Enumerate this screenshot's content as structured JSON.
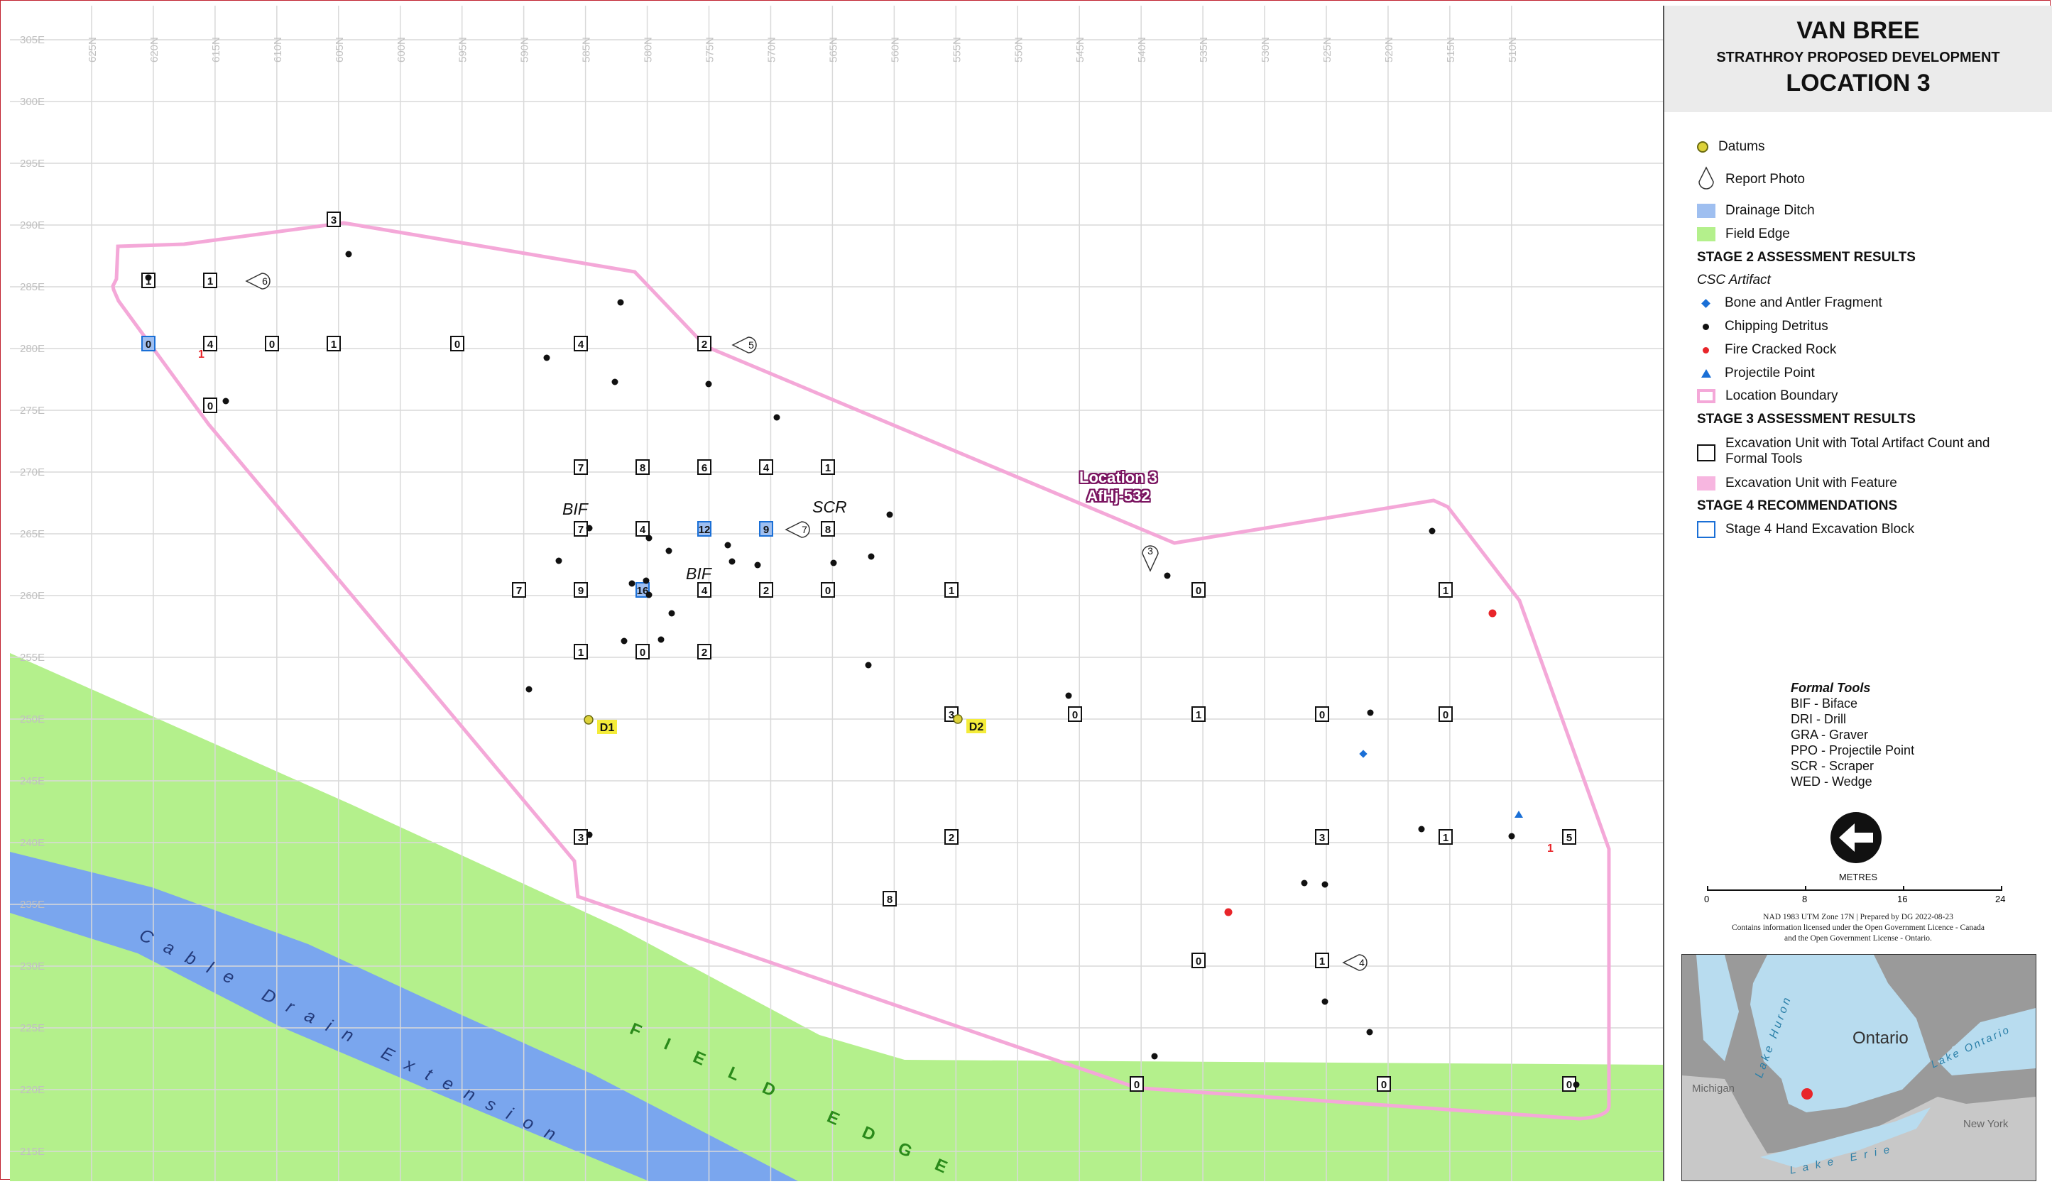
{
  "panel": {
    "title": "VAN BREE",
    "subtitle": "STRATHROY PROPOSED DEVELOPMENT",
    "location": "LOCATION 3",
    "legend": {
      "datums": "Datums",
      "report_photo": "Report Photo",
      "drainage_ditch": "Drainage Ditch",
      "field_edge": "Field Edge",
      "stage2_heading": "STAGE 2 ASSESSMENT RESULTS",
      "csc_artifact": "CSC Artifact",
      "bone": "Bone and Antler Fragment",
      "chipping": "Chipping Detritus",
      "fcr": "Fire Cracked Rock",
      "projectile": "Projectile Point",
      "location_boundary": "Location Boundary",
      "stage3_heading": "STAGE 3 ASSESSMENT RESULTS",
      "excavation_unit_1": "Excavation Unit with Total Artifact Count and",
      "excavation_unit_2": "Formal Tools",
      "excavation_feature": "Excavation Unit with Feature",
      "stage4_heading": "STAGE 4 RECOMMENDATIONS",
      "stage4_block": "Stage 4 Hand Excavation Block"
    },
    "formal_tools": {
      "title": "Formal Tools",
      "items": [
        "BIF - Biface",
        "DRI - Drill",
        "GRA - Graver",
        "PPO - Projectile Point",
        "SCR - Scraper",
        "WED - Wedge"
      ]
    },
    "scale": {
      "label": "METRES",
      "ticks": [
        "0",
        "8",
        "16",
        "24"
      ]
    },
    "credit": [
      "NAD 1983 UTM Zone 17N  |  Prepared by DG 2022-08-23",
      "Contains information licensed under the Open Government Licence - Canada",
      "and the Open Government License - Ontario."
    ],
    "inset": {
      "ontario": "Ontario",
      "lake_huron": "Lake Huron",
      "lake_ontario": "Lake Ontario",
      "lake_erie": "Lake Erie",
      "michigan": "Michigan",
      "new_york": "New York"
    }
  },
  "map": {
    "colors": {
      "boundary": "#f4a8d8",
      "field_edge": "#b4f08c",
      "ditch": "#7aa6ee",
      "grid": "#d8d8d8",
      "fcr": "#e8252a",
      "bone": "#1a6fd6",
      "projectile": "#1a6fd6",
      "stage4": "#1a6fd6"
    },
    "x_grid_labels": [
      "625N",
      "620N",
      "615N",
      "610N",
      "605N",
      "600N",
      "595N",
      "590N",
      "585N",
      "580N",
      "575N",
      "570N",
      "565N",
      "560N",
      "555N",
      "550N",
      "545N",
      "540N",
      "535N",
      "530N",
      "525N",
      "520N",
      "515N",
      "510N"
    ],
    "y_grid_labels": [
      "305E",
      "300E",
      "295E",
      "290E",
      "285E",
      "280E",
      "275E",
      "270E",
      "265E",
      "260E",
      "255E",
      "250E",
      "245E",
      "240E",
      "235E",
      "230E",
      "225E",
      "220E",
      "215E"
    ],
    "location_label_1": "Location 3",
    "location_label_2": "AfHj-532",
    "ditch_label": "Cable Drain Extension",
    "field_edge_label": "FIELD EDGE",
    "tool_labels": [
      "BIF",
      "SCR",
      "BIF"
    ],
    "datums": [
      "D1",
      "D2"
    ],
    "photos": [
      "6",
      "5",
      "7",
      "3",
      "4"
    ],
    "unit_counts": [
      "3",
      "1",
      "1",
      "0",
      "4",
      "0",
      "1",
      "0",
      "4",
      "2",
      "0",
      "7",
      "8",
      "6",
      "4",
      "1",
      "7",
      "4",
      "12",
      "9",
      "8",
      "7",
      "9",
      "16",
      "4",
      "2",
      "0",
      "1",
      "0",
      "1",
      "1",
      "0",
      "2",
      "3",
      "0",
      "1",
      "0",
      "0",
      "3",
      "2",
      "3",
      "1",
      "5",
      "8",
      "0",
      "1",
      "0",
      "0",
      "0"
    ],
    "fcr_counts": [
      "1",
      "1"
    ]
  }
}
